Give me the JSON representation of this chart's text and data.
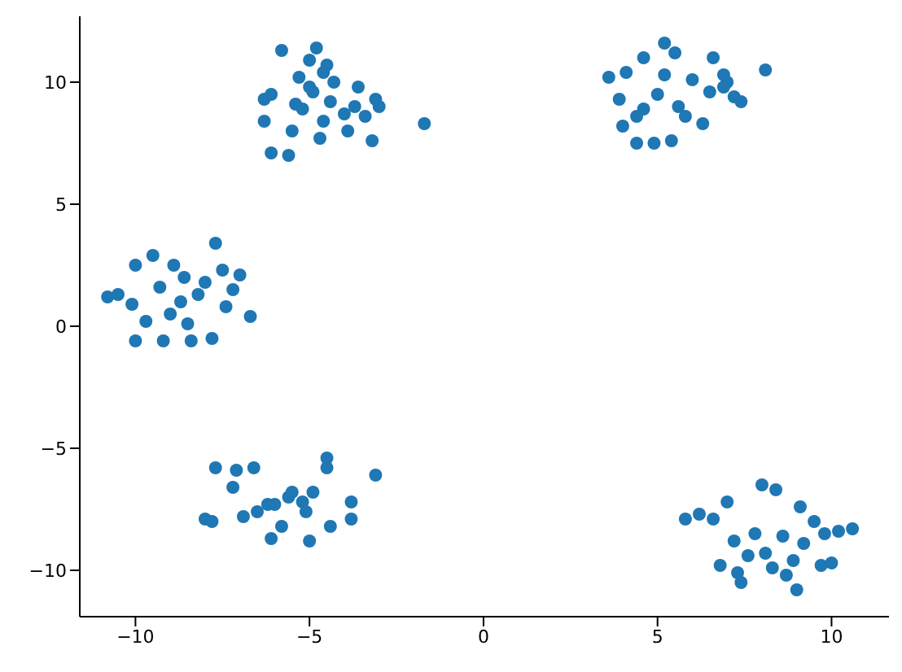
{
  "chart_data": {
    "type": "scatter",
    "xlim": [
      -11.6,
      11.65
    ],
    "ylim": [
      -11.9,
      12.7
    ],
    "xticks": [
      -10,
      -5,
      0,
      5,
      10
    ],
    "yticks": [
      -10,
      -5,
      0,
      5,
      10
    ],
    "grid": false,
    "marker": "circle",
    "series": [
      {
        "color": "#1f77b4",
        "x": [
          -5.8,
          -4.8,
          -4.5,
          -6.1,
          -5.6,
          -1.7,
          -3.2,
          -3.6,
          -3.0,
          -3.9,
          -6.3,
          -6.3,
          -6.1,
          -5.3,
          -5.0,
          -4.6,
          -4.9,
          -5.2,
          -4.4,
          -4.0,
          -5.5,
          -4.7,
          -3.4,
          -3.1,
          -5.0,
          -4.3,
          -5.4,
          -4.6,
          -3.7,
          5.2,
          4.6,
          5.5,
          6.6,
          6.9,
          8.1,
          3.6,
          4.1,
          3.9,
          4.0,
          4.4,
          4.9,
          5.4,
          6.3,
          7.2,
          7.4,
          7.0,
          6.0,
          5.0,
          5.6,
          4.6,
          5.8,
          6.5,
          5.2,
          4.4,
          6.9,
          -7.7,
          -10.0,
          -10.8,
          -9.5,
          -10.0,
          -6.7,
          -8.4,
          -9.2,
          -7.2,
          -7.0,
          -7.5,
          -10.5,
          -10.1,
          -8.0,
          -8.7,
          -9.0,
          -7.8,
          -8.9,
          -9.7,
          -8.2,
          -8.5,
          -9.3,
          -7.4,
          -8.6,
          -3.1,
          -4.5,
          -4.5,
          -7.7,
          -7.8,
          -6.1,
          -5.0,
          -7.1,
          -6.6,
          -7.2,
          -6.9,
          -8.0,
          -3.8,
          -3.8,
          -4.4,
          -5.8,
          -5.2,
          -6.5,
          -5.6,
          -4.9,
          -6.2,
          -5.5,
          -5.1,
          -6.0,
          10.6,
          10.2,
          5.8,
          6.2,
          6.6,
          8.0,
          8.4,
          7.0,
          9.1,
          9.0,
          7.4,
          7.3,
          6.8,
          9.7,
          10.0,
          8.7,
          8.1,
          7.8,
          8.6,
          9.5,
          9.2,
          7.6,
          8.3,
          8.9,
          7.2,
          9.8
        ],
        "values": [
          11.3,
          11.4,
          10.7,
          7.1,
          7.0,
          8.3,
          7.6,
          9.8,
          9.0,
          8.0,
          9.3,
          8.4,
          9.5,
          10.2,
          10.9,
          10.4,
          9.6,
          8.9,
          9.2,
          8.7,
          8.0,
          7.7,
          8.6,
          9.3,
          9.8,
          10.0,
          9.1,
          8.4,
          9.0,
          11.6,
          11.0,
          11.2,
          11.0,
          10.3,
          10.5,
          10.2,
          10.4,
          9.3,
          8.2,
          7.5,
          7.5,
          7.6,
          8.3,
          9.4,
          9.2,
          10.0,
          10.1,
          9.5,
          9.0,
          8.9,
          8.6,
          9.6,
          10.3,
          8.6,
          9.8,
          3.4,
          2.5,
          1.2,
          2.9,
          -0.6,
          0.4,
          -0.6,
          -0.6,
          1.5,
          2.1,
          2.3,
          1.3,
          0.9,
          1.8,
          1.0,
          0.5,
          -0.5,
          2.5,
          0.2,
          1.3,
          0.1,
          1.6,
          0.8,
          2.0,
          -6.1,
          -5.4,
          -5.8,
          -5.8,
          -8.0,
          -8.7,
          -8.8,
          -5.9,
          -5.8,
          -6.6,
          -7.8,
          -7.9,
          -7.2,
          -7.9,
          -8.2,
          -8.2,
          -7.2,
          -7.6,
          -7.0,
          -6.8,
          -7.3,
          -6.8,
          -7.6,
          -7.3,
          -8.3,
          -8.4,
          -7.9,
          -7.7,
          -7.9,
          -6.5,
          -6.7,
          -7.2,
          -7.4,
          -10.8,
          -10.5,
          -10.1,
          -9.8,
          -9.8,
          -9.7,
          -10.2,
          -9.3,
          -8.5,
          -8.6,
          -8.0,
          -8.9,
          -9.4,
          -9.9,
          -9.6,
          -8.8,
          -8.5
        ]
      }
    ]
  }
}
